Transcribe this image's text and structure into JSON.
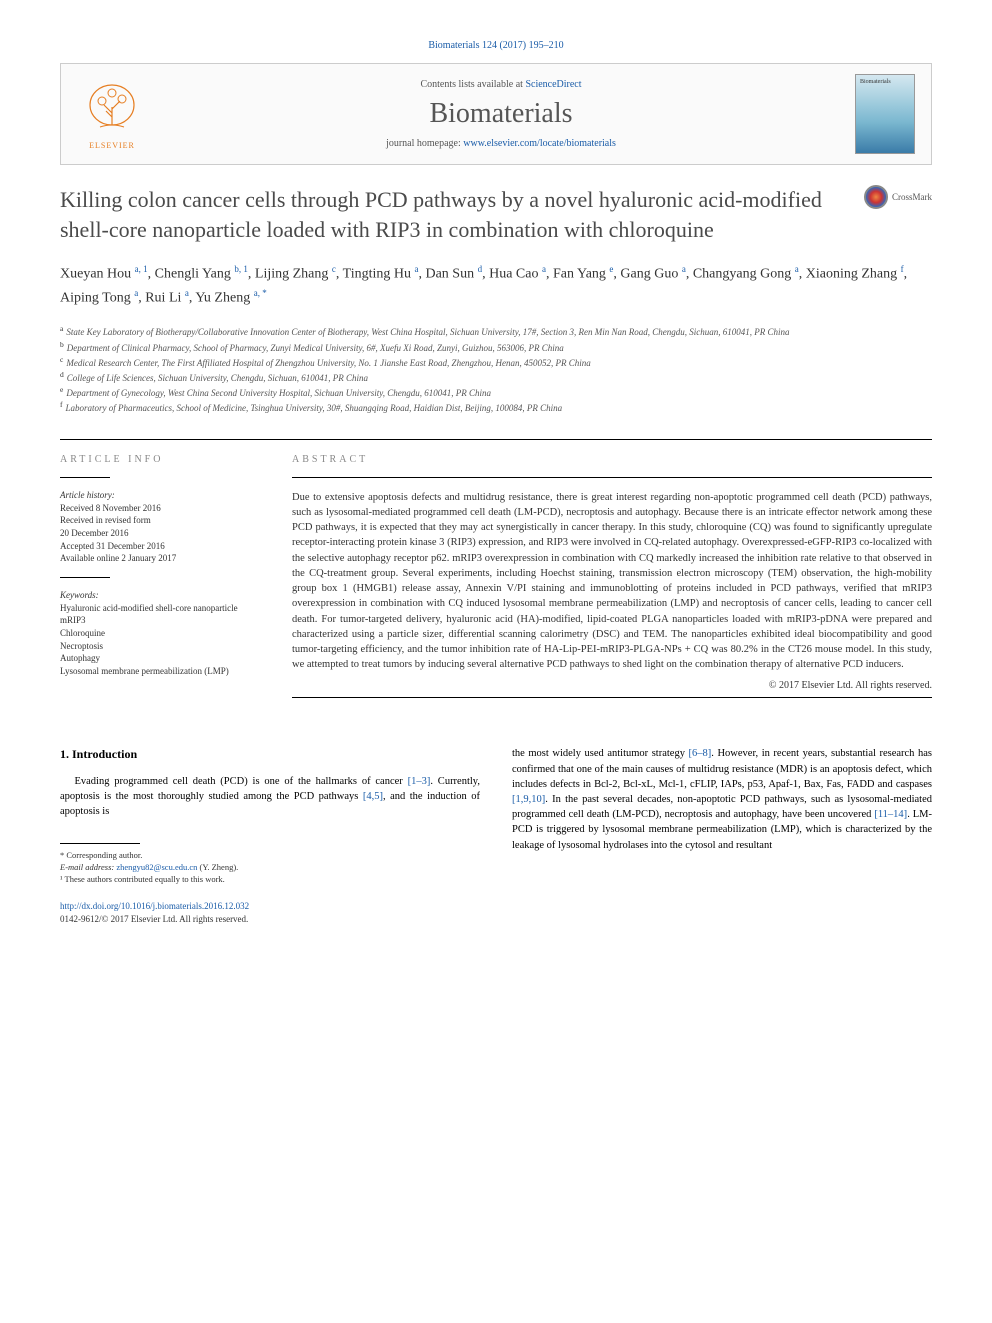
{
  "citation": "Biomaterials 124 (2017) 195–210",
  "contents_box": {
    "avail_prefix": "Contents lists available at ",
    "avail_link": "ScienceDirect",
    "journal": "Biomaterials",
    "home_prefix": "journal homepage: ",
    "home_link": "www.elsevier.com/locate/biomaterials",
    "publisher": "ELSEVIER"
  },
  "crossmark": "CrossMark",
  "title": "Killing colon cancer cells through PCD pathways by a novel hyaluronic acid-modified shell-core nanoparticle loaded with RIP3 in combination with chloroquine",
  "authors": [
    {
      "name": "Xueyan Hou",
      "sup": "a, 1"
    },
    {
      "name": "Chengli Yang",
      "sup": "b, 1"
    },
    {
      "name": "Lijing Zhang",
      "sup": "c"
    },
    {
      "name": "Tingting Hu",
      "sup": "a"
    },
    {
      "name": "Dan Sun",
      "sup": "d"
    },
    {
      "name": "Hua Cao",
      "sup": "a"
    },
    {
      "name": "Fan Yang",
      "sup": "e"
    },
    {
      "name": "Gang Guo",
      "sup": "a"
    },
    {
      "name": "Changyang Gong",
      "sup": "a"
    },
    {
      "name": "Xiaoning Zhang",
      "sup": "f"
    },
    {
      "name": "Aiping Tong",
      "sup": "a"
    },
    {
      "name": "Rui Li",
      "sup": "a"
    },
    {
      "name": "Yu Zheng",
      "sup": "a, *"
    }
  ],
  "affiliations": [
    {
      "sup": "a",
      "text": "State Key Laboratory of Biotherapy/Collaborative Innovation Center of Biotherapy, West China Hospital, Sichuan University, 17#, Section 3, Ren Min Nan Road, Chengdu, Sichuan, 610041, PR China"
    },
    {
      "sup": "b",
      "text": "Department of Clinical Pharmacy, School of Pharmacy, Zunyi Medical University, 6#, Xuefu Xi Road, Zunyi, Guizhou, 563006, PR China"
    },
    {
      "sup": "c",
      "text": "Medical Research Center, The First Affiliated Hospital of Zhengzhou University, No. 1 Jianshe East Road, Zhengzhou, Henan, 450052, PR China"
    },
    {
      "sup": "d",
      "text": "College of Life Sciences, Sichuan University, Chengdu, Sichuan, 610041, PR China"
    },
    {
      "sup": "e",
      "text": "Department of Gynecology, West China Second University Hospital, Sichuan University, Chengdu, 610041, PR China"
    },
    {
      "sup": "f",
      "text": "Laboratory of Pharmaceutics, School of Medicine, Tsinghua University, 30#, Shuangqing Road, Haidian Dist, Beijing, 100084, PR China"
    }
  ],
  "article_info": {
    "heading": "ARTICLE INFO",
    "history_head": "Article history:",
    "history": "Received 8 November 2016\nReceived in revised form\n20 December 2016\nAccepted 31 December 2016\nAvailable online 2 January 2017",
    "keywords_head": "Keywords:",
    "keywords": "Hyaluronic acid-modified shell-core nanoparticle\nmRIP3\nChloroquine\nNecroptosis\nAutophagy\nLysosomal membrane permeabilization (LMP)"
  },
  "abstract": {
    "heading": "ABSTRACT",
    "text": "Due to extensive apoptosis defects and multidrug resistance, there is great interest regarding non-apoptotic programmed cell death (PCD) pathways, such as lysosomal-mediated programmed cell death (LM-PCD), necroptosis and autophagy. Because there is an intricate effector network among these PCD pathways, it is expected that they may act synergistically in cancer therapy. In this study, chloroquine (CQ) was found to significantly upregulate receptor-interacting protein kinase 3 (RIP3) expression, and RIP3 were involved in CQ-related autophagy. Overexpressed-eGFP-RIP3 co-localized with the selective autophagy receptor p62. mRIP3 overexpression in combination with CQ markedly increased the inhibition rate relative to that observed in the CQ-treatment group. Several experiments, including Hoechst staining, transmission electron microscopy (TEM) observation, the high-mobility group box 1 (HMGB1) release assay, Annexin V/PI staining and immunoblotting of proteins included in PCD pathways, verified that mRIP3 overexpression in combination with CQ induced lysosomal membrane permeabilization (LMP) and necroptosis of cancer cells, leading to cancer cell death. For tumor-targeted delivery, hyaluronic acid (HA)-modified, lipid-coated PLGA nanoparticles loaded with mRIP3-pDNA were prepared and characterized using a particle sizer, differential scanning calorimetry (DSC) and TEM. The nanoparticles exhibited ideal biocompatibility and good tumor-targeting efficiency, and the tumor inhibition rate of HA-Lip-PEI-mRIP3-PLGA-NPs + CQ was 80.2% in the CT26 mouse model. In this study, we attempted to treat tumors by inducing several alternative PCD pathways to shed light on the combination therapy of alternative PCD inducers.",
    "copyright": "© 2017 Elsevier Ltd. All rights reserved."
  },
  "body": {
    "section_num": "1.",
    "section_title": "Introduction",
    "col1": "Evading programmed cell death (PCD) is one of the hallmarks of cancer [1–3]. Currently, apoptosis is the most thoroughly studied among the PCD pathways [4,5], and the induction of apoptosis is",
    "col2": "the most widely used antitumor strategy [6–8]. However, in recent years, substantial research has confirmed that one of the main causes of multidrug resistance (MDR) is an apoptosis defect, which includes defects in Bcl-2, Bcl-xL, Mcl-1, cFLIP, IAPs, p53, Apaf-1, Bax, Fas, FADD and caspases [1,9,10]. In the past several decades, non-apoptotic PCD pathways, such as lysosomal-mediated programmed cell death (LM-PCD), necroptosis and autophagy, have been uncovered [11–14]. LM-PCD is triggered by lysosomal membrane permeabilization (LMP), which is characterized by the leakage of lysosomal hydrolases into the cytosol and resultant",
    "refs_col1": [
      "[1–3]",
      "[4,5]"
    ],
    "refs_col2": [
      "[6–8]",
      "[1,9,10]",
      "[11–14]"
    ]
  },
  "footer": {
    "corresp": "* Corresponding author.",
    "email_label": "E-mail address: ",
    "email": "zhengyu82@scu.edu.cn",
    "email_suffix": " (Y. Zheng).",
    "equal": "¹ These authors contributed equally to this work.",
    "doi": "http://dx.doi.org/10.1016/j.biomaterials.2016.12.032",
    "issn": "0142-9612/© 2017 Elsevier Ltd. All rights reserved."
  },
  "colors": {
    "link": "#1a5ca8",
    "orange": "#e67e22",
    "text": "#333333",
    "muted": "#888888"
  }
}
